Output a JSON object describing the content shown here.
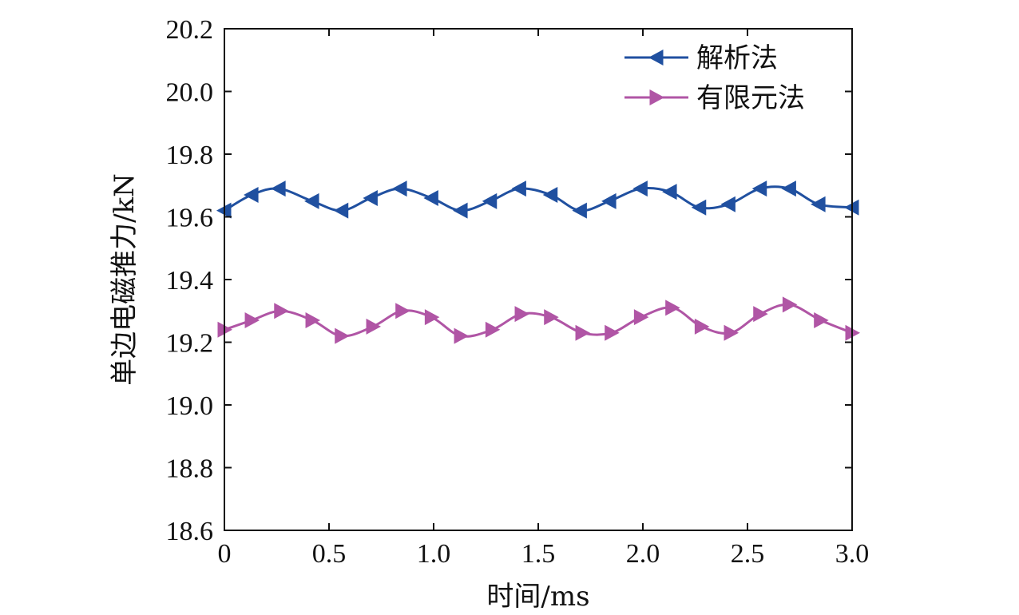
{
  "chart_data": {
    "type": "line",
    "title": "",
    "xlabel": "时间/ms",
    "ylabel": "单边电磁推力/kN",
    "xlim": [
      0,
      3.0
    ],
    "ylim": [
      18.6,
      20.2
    ],
    "xticks": [
      0,
      0.5,
      1.0,
      1.5,
      2.0,
      2.5,
      3.0
    ],
    "xtick_labels": [
      "0",
      "0.5",
      "1.0",
      "1.5",
      "2.0",
      "2.5",
      "3.0"
    ],
    "yticks": [
      18.6,
      18.8,
      19.0,
      19.2,
      19.4,
      19.6,
      19.8,
      20.0,
      20.2
    ],
    "ytick_labels": [
      "18.6",
      "18.8",
      "19.0",
      "19.2",
      "19.4",
      "19.6",
      "19.8",
      "20.0",
      "20.2"
    ],
    "grid": false,
    "legend_position": "top-right",
    "series": [
      {
        "name": "解析法",
        "color": "#2050a0",
        "marker": "triangle-left",
        "x": [
          0,
          0.13,
          0.26,
          0.42,
          0.56,
          0.7,
          0.84,
          0.99,
          1.13,
          1.27,
          1.41,
          1.56,
          1.7,
          1.84,
          1.99,
          2.13,
          2.27,
          2.41,
          2.56,
          2.7,
          2.84,
          3.0
        ],
        "y": [
          19.62,
          19.67,
          19.69,
          19.65,
          19.62,
          19.66,
          19.69,
          19.66,
          19.62,
          19.65,
          19.69,
          19.67,
          19.62,
          19.65,
          19.69,
          19.68,
          19.63,
          19.64,
          19.69,
          19.69,
          19.64,
          19.63
        ]
      },
      {
        "name": "有限元法",
        "color": "#b055a5",
        "marker": "triangle-right",
        "x": [
          0,
          0.13,
          0.27,
          0.42,
          0.56,
          0.71,
          0.85,
          0.99,
          1.13,
          1.28,
          1.42,
          1.56,
          1.71,
          1.85,
          1.99,
          2.14,
          2.28,
          2.42,
          2.56,
          2.7,
          2.85,
          3.0
        ],
        "y": [
          19.24,
          19.27,
          19.3,
          19.27,
          19.22,
          19.25,
          19.3,
          19.28,
          19.22,
          19.24,
          19.29,
          19.28,
          19.23,
          19.23,
          19.28,
          19.31,
          19.25,
          19.23,
          19.29,
          19.32,
          19.27,
          19.23
        ]
      }
    ]
  }
}
